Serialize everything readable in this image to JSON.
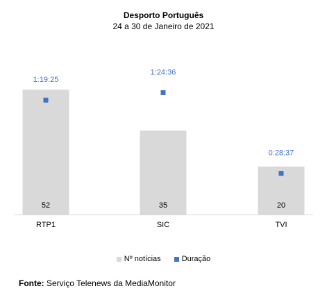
{
  "chart_data": {
    "type": "bar",
    "title": "Desporto Português",
    "subtitle": "24 a 30 de Janeiro de 2021",
    "categories": [
      "RTP1",
      "SIC",
      "TVI"
    ],
    "series": [
      {
        "name": "Nº notícias",
        "type": "bar",
        "color": "#d9d9d9",
        "values": [
          52,
          35,
          20
        ],
        "axis": "left"
      },
      {
        "name": "Duração",
        "type": "scatter",
        "color": "#4472c4",
        "values_seconds": [
          4765,
          5076,
          1717
        ],
        "labels": [
          "1:19:25",
          "1:24:36",
          "0:28:37"
        ],
        "axis": "right"
      }
    ],
    "ylim_left": [
      0,
      72
    ],
    "ylim_right": [
      0,
      7200
    ],
    "legend_position": "bottom",
    "grid": false
  },
  "legend": {
    "bar_label": "Nº notícias",
    "marker_label": "Duração"
  },
  "source": {
    "prefix": "Fonte:",
    "text": "Serviço Telenews da MediaMonitor"
  }
}
